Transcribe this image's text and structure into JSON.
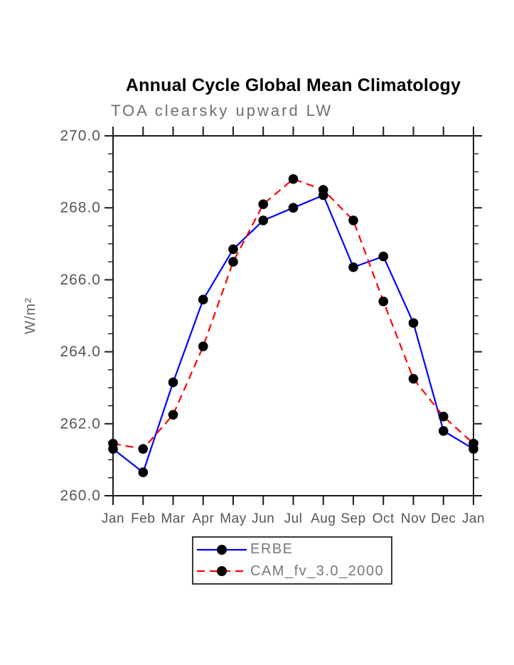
{
  "chart_data": {
    "type": "line",
    "title": "Annual Cycle Global Mean Climatology",
    "subtitle": "TOA clearsky upward LW",
    "ylabel": "W/m²",
    "xlabel": "",
    "categories": [
      "Jan",
      "Feb",
      "Mar",
      "Apr",
      "May",
      "Jun",
      "Jul",
      "Aug",
      "Sep",
      "Oct",
      "Nov",
      "Dec",
      "Jan"
    ],
    "series": [
      {
        "name": "ERBE",
        "color": "#0000ff",
        "line_style": "solid",
        "marker": "black-dot",
        "values": [
          261.3,
          260.65,
          263.15,
          265.45,
          266.85,
          267.65,
          268.0,
          268.35,
          266.35,
          266.65,
          264.8,
          261.8,
          261.3
        ]
      },
      {
        "name": "CAM_fv_3.0_2000",
        "color": "#ff0000",
        "line_style": "dashed",
        "marker": "black-dot",
        "values": [
          261.45,
          261.3,
          262.25,
          264.15,
          266.5,
          268.1,
          268.8,
          268.5,
          267.65,
          265.4,
          263.25,
          262.2,
          261.45
        ]
      }
    ],
    "ylim": [
      260.0,
      270.0
    ],
    "yticks": [
      260,
      262,
      264,
      266,
      268,
      270
    ],
    "ytick_labels": [
      "260.0",
      "262.0",
      "264.0",
      "266.0",
      "268.0",
      "270.0"
    ],
    "minor_tick_step": 0.5,
    "grid": false,
    "tick_style": "outward-all-four-sides",
    "legend_position": "bottom-center",
    "marker_color": "#000000",
    "axis_color": "#1a1a1a",
    "tick_label_color": "#555555"
  }
}
